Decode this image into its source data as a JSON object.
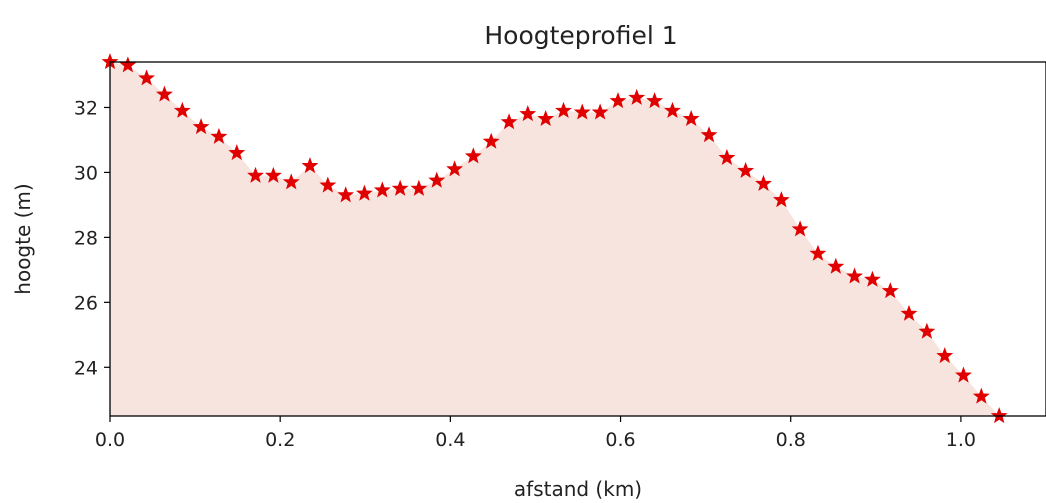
{
  "chart_data": {
    "type": "area",
    "title": "Hoogteprofiel 1",
    "xlabel": "afstand (km)",
    "ylabel": "hoogte (m)",
    "xlim": [
      0.0,
      1.1
    ],
    "ylim": [
      22.5,
      33.4
    ],
    "x_ticks": [
      0.0,
      0.2,
      0.4,
      0.6,
      0.8,
      1.0
    ],
    "x_tick_labels": [
      "0.0",
      "0.2",
      "0.4",
      "0.6",
      "0.8",
      "1.0"
    ],
    "y_ticks": [
      24,
      26,
      28,
      30,
      32
    ],
    "y_tick_labels": [
      "24",
      "26",
      "28",
      "30",
      "32"
    ],
    "grid": false,
    "marker": "star",
    "marker_color": "#e00000",
    "fill_color": "#f7e4df",
    "series": [
      {
        "x": [
          0.0,
          0.021,
          0.043,
          0.064,
          0.085,
          0.107,
          0.128,
          0.149,
          0.171,
          0.192,
          0.213,
          0.235,
          0.256,
          0.277,
          0.299,
          0.32,
          0.341,
          0.363,
          0.384,
          0.405,
          0.427,
          0.448,
          0.469,
          0.491,
          0.512,
          0.533,
          0.555,
          0.576,
          0.597,
          0.619,
          0.64,
          0.661,
          0.683,
          0.704,
          0.725,
          0.747,
          0.768,
          0.789,
          0.811,
          0.832,
          0.853,
          0.875,
          0.896,
          0.917,
          0.939,
          0.96,
          0.981,
          1.003,
          1.024,
          1.045
        ],
        "y": [
          33.4,
          33.3,
          32.9,
          32.4,
          31.9,
          31.4,
          31.1,
          30.6,
          29.9,
          29.9,
          29.7,
          30.2,
          29.6,
          29.3,
          29.35,
          29.45,
          29.5,
          29.5,
          29.75,
          30.1,
          30.5,
          30.95,
          31.55,
          31.8,
          31.65,
          31.9,
          31.85,
          31.85,
          32.2,
          32.3,
          32.2,
          31.9,
          31.65,
          31.15,
          30.45,
          30.05,
          29.65,
          29.15,
          28.25,
          27.5,
          27.1,
          26.8,
          26.7,
          26.35,
          25.65,
          25.1,
          24.35,
          23.75,
          23.1,
          22.5
        ]
      }
    ]
  }
}
